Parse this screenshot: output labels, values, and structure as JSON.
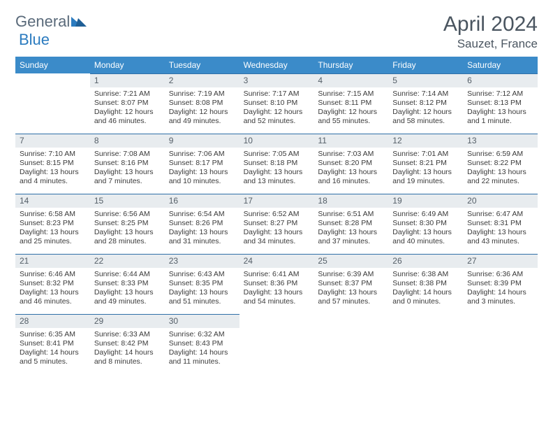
{
  "logo": {
    "word1": "General",
    "word2": "Blue"
  },
  "title": "April 2024",
  "location": "Sauzet, France",
  "colors": {
    "header_bg": "#3b8bc9",
    "header_text": "#ffffff",
    "daynum_bg": "#e8ecef",
    "row_border": "#2f6fa8",
    "body_text": "#3a3a3a",
    "title_text": "#4a5560",
    "logo_gray": "#5a6a7a",
    "logo_blue": "#2b7bbf"
  },
  "day_names": [
    "Sunday",
    "Monday",
    "Tuesday",
    "Wednesday",
    "Thursday",
    "Friday",
    "Saturday"
  ],
  "leading_blanks": 1,
  "days": [
    {
      "n": 1,
      "sunrise": "7:21 AM",
      "sunset": "8:07 PM",
      "daylight": "12 hours and 46 minutes."
    },
    {
      "n": 2,
      "sunrise": "7:19 AM",
      "sunset": "8:08 PM",
      "daylight": "12 hours and 49 minutes."
    },
    {
      "n": 3,
      "sunrise": "7:17 AM",
      "sunset": "8:10 PM",
      "daylight": "12 hours and 52 minutes."
    },
    {
      "n": 4,
      "sunrise": "7:15 AM",
      "sunset": "8:11 PM",
      "daylight": "12 hours and 55 minutes."
    },
    {
      "n": 5,
      "sunrise": "7:14 AM",
      "sunset": "8:12 PM",
      "daylight": "12 hours and 58 minutes."
    },
    {
      "n": 6,
      "sunrise": "7:12 AM",
      "sunset": "8:13 PM",
      "daylight": "13 hours and 1 minute."
    },
    {
      "n": 7,
      "sunrise": "7:10 AM",
      "sunset": "8:15 PM",
      "daylight": "13 hours and 4 minutes."
    },
    {
      "n": 8,
      "sunrise": "7:08 AM",
      "sunset": "8:16 PM",
      "daylight": "13 hours and 7 minutes."
    },
    {
      "n": 9,
      "sunrise": "7:06 AM",
      "sunset": "8:17 PM",
      "daylight": "13 hours and 10 minutes."
    },
    {
      "n": 10,
      "sunrise": "7:05 AM",
      "sunset": "8:18 PM",
      "daylight": "13 hours and 13 minutes."
    },
    {
      "n": 11,
      "sunrise": "7:03 AM",
      "sunset": "8:20 PM",
      "daylight": "13 hours and 16 minutes."
    },
    {
      "n": 12,
      "sunrise": "7:01 AM",
      "sunset": "8:21 PM",
      "daylight": "13 hours and 19 minutes."
    },
    {
      "n": 13,
      "sunrise": "6:59 AM",
      "sunset": "8:22 PM",
      "daylight": "13 hours and 22 minutes."
    },
    {
      "n": 14,
      "sunrise": "6:58 AM",
      "sunset": "8:23 PM",
      "daylight": "13 hours and 25 minutes."
    },
    {
      "n": 15,
      "sunrise": "6:56 AM",
      "sunset": "8:25 PM",
      "daylight": "13 hours and 28 minutes."
    },
    {
      "n": 16,
      "sunrise": "6:54 AM",
      "sunset": "8:26 PM",
      "daylight": "13 hours and 31 minutes."
    },
    {
      "n": 17,
      "sunrise": "6:52 AM",
      "sunset": "8:27 PM",
      "daylight": "13 hours and 34 minutes."
    },
    {
      "n": 18,
      "sunrise": "6:51 AM",
      "sunset": "8:28 PM",
      "daylight": "13 hours and 37 minutes."
    },
    {
      "n": 19,
      "sunrise": "6:49 AM",
      "sunset": "8:30 PM",
      "daylight": "13 hours and 40 minutes."
    },
    {
      "n": 20,
      "sunrise": "6:47 AM",
      "sunset": "8:31 PM",
      "daylight": "13 hours and 43 minutes."
    },
    {
      "n": 21,
      "sunrise": "6:46 AM",
      "sunset": "8:32 PM",
      "daylight": "13 hours and 46 minutes."
    },
    {
      "n": 22,
      "sunrise": "6:44 AM",
      "sunset": "8:33 PM",
      "daylight": "13 hours and 49 minutes."
    },
    {
      "n": 23,
      "sunrise": "6:43 AM",
      "sunset": "8:35 PM",
      "daylight": "13 hours and 51 minutes."
    },
    {
      "n": 24,
      "sunrise": "6:41 AM",
      "sunset": "8:36 PM",
      "daylight": "13 hours and 54 minutes."
    },
    {
      "n": 25,
      "sunrise": "6:39 AM",
      "sunset": "8:37 PM",
      "daylight": "13 hours and 57 minutes."
    },
    {
      "n": 26,
      "sunrise": "6:38 AM",
      "sunset": "8:38 PM",
      "daylight": "14 hours and 0 minutes."
    },
    {
      "n": 27,
      "sunrise": "6:36 AM",
      "sunset": "8:39 PM",
      "daylight": "14 hours and 3 minutes."
    },
    {
      "n": 28,
      "sunrise": "6:35 AM",
      "sunset": "8:41 PM",
      "daylight": "14 hours and 5 minutes."
    },
    {
      "n": 29,
      "sunrise": "6:33 AM",
      "sunset": "8:42 PM",
      "daylight": "14 hours and 8 minutes."
    },
    {
      "n": 30,
      "sunrise": "6:32 AM",
      "sunset": "8:43 PM",
      "daylight": "14 hours and 11 minutes."
    }
  ],
  "labels": {
    "sunrise": "Sunrise:",
    "sunset": "Sunset:",
    "daylight": "Daylight:"
  }
}
